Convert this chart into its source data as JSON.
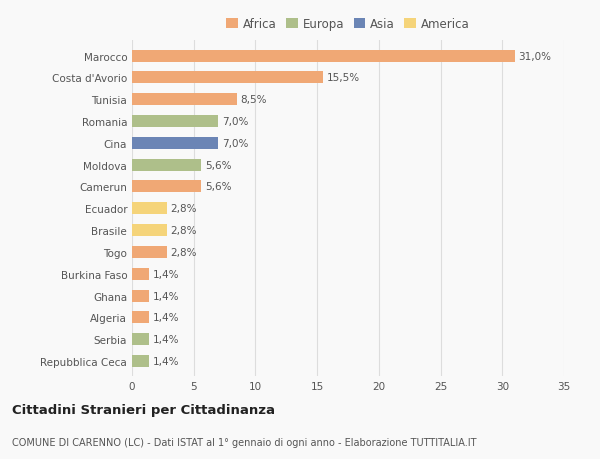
{
  "categories": [
    "Marocco",
    "Costa d'Avorio",
    "Tunisia",
    "Romania",
    "Cina",
    "Moldova",
    "Camerun",
    "Ecuador",
    "Brasile",
    "Togo",
    "Burkina Faso",
    "Ghana",
    "Algeria",
    "Serbia",
    "Repubblica Ceca"
  ],
  "values": [
    31.0,
    15.5,
    8.5,
    7.0,
    7.0,
    5.6,
    5.6,
    2.8,
    2.8,
    2.8,
    1.4,
    1.4,
    1.4,
    1.4,
    1.4
  ],
  "labels": [
    "31,0%",
    "15,5%",
    "8,5%",
    "7,0%",
    "7,0%",
    "5,6%",
    "5,6%",
    "2,8%",
    "2,8%",
    "2,8%",
    "1,4%",
    "1,4%",
    "1,4%",
    "1,4%",
    "1,4%"
  ],
  "colors": [
    "#F0A875",
    "#F0A875",
    "#F0A875",
    "#AEBF8A",
    "#6B85B5",
    "#AEBF8A",
    "#F0A875",
    "#F5D47A",
    "#F5D47A",
    "#F0A875",
    "#F0A875",
    "#F0A875",
    "#F0A875",
    "#AEBF8A",
    "#AEBF8A"
  ],
  "legend_labels": [
    "Africa",
    "Europa",
    "Asia",
    "America"
  ],
  "legend_colors": [
    "#F0A875",
    "#AEBF8A",
    "#6B85B5",
    "#F5D47A"
  ],
  "title": "Cittadini Stranieri per Cittadinanza",
  "subtitle": "COMUNE DI CARENNO (LC) - Dati ISTAT al 1° gennaio di ogni anno - Elaborazione TUTTITALIA.IT",
  "xlim": [
    0,
    35
  ],
  "xticks": [
    0,
    5,
    10,
    15,
    20,
    25,
    30,
    35
  ],
  "background_color": "#f9f9f9",
  "bar_height": 0.55,
  "grid_color": "#dddddd",
  "title_fontsize": 9.5,
  "subtitle_fontsize": 7,
  "label_fontsize": 7.5,
  "tick_fontsize": 7.5,
  "legend_fontsize": 8.5
}
